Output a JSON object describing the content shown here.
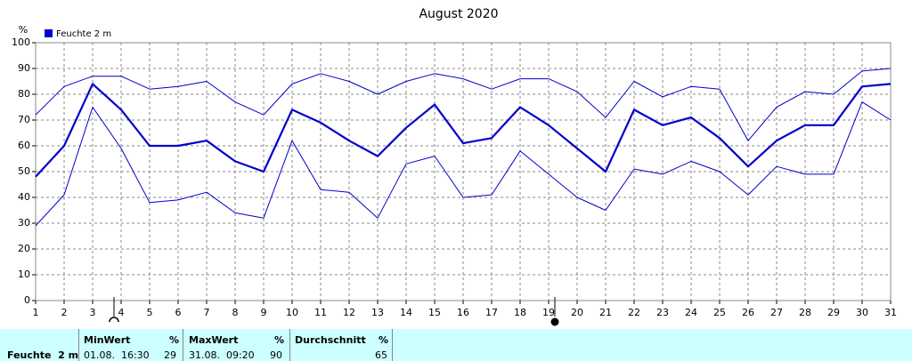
{
  "chart_data": {
    "type": "line",
    "title": "August 2020",
    "y_label": "%",
    "x": [
      1,
      2,
      3,
      4,
      5,
      6,
      7,
      8,
      9,
      10,
      11,
      12,
      13,
      14,
      15,
      16,
      17,
      18,
      19,
      20,
      21,
      22,
      23,
      24,
      25,
      26,
      27,
      28,
      29,
      30,
      31
    ],
    "xlim": [
      1,
      31
    ],
    "xticks": [
      1,
      2,
      3,
      4,
      5,
      6,
      7,
      8,
      9,
      10,
      11,
      12,
      13,
      14,
      15,
      16,
      17,
      18,
      19,
      20,
      21,
      22,
      23,
      24,
      25,
      26,
      27,
      28,
      29,
      30,
      31
    ],
    "ylim": [
      0,
      100
    ],
    "yticks": [
      0,
      10,
      20,
      30,
      40,
      50,
      60,
      70,
      80,
      90,
      100
    ],
    "grid": true,
    "legend": "top-left",
    "series": [
      {
        "name": "Feuchte  2 m",
        "color": "#0000cc",
        "width": 2.2,
        "values": [
          48,
          60,
          84,
          74,
          60,
          60,
          62,
          54,
          50,
          74,
          69,
          62,
          56,
          67,
          76,
          61,
          63,
          75,
          68,
          59,
          50,
          74,
          68,
          71,
          63,
          52,
          62,
          68,
          68,
          83,
          84
        ]
      },
      {
        "color": "#0000cc",
        "width": 1,
        "values": [
          72,
          83,
          87,
          87,
          82,
          83,
          85,
          77,
          72,
          84,
          88,
          85,
          80,
          85,
          88,
          86,
          82,
          86,
          86,
          81,
          71,
          85,
          79,
          83,
          82,
          62,
          75,
          81,
          80,
          89,
          90
        ]
      },
      {
        "color": "#0000cc",
        "width": 1,
        "values": [
          29,
          41,
          75,
          59,
          38,
          39,
          42,
          34,
          32,
          62,
          43,
          42,
          32,
          53,
          56,
          40,
          41,
          58,
          49,
          40,
          35,
          51,
          49,
          54,
          50,
          41,
          52,
          49,
          49,
          77,
          70
        ]
      }
    ]
  },
  "table": {
    "label": "Feuchte  2 m",
    "min": {
      "header": "MinWert",
      "unit": "%",
      "time": "01.08.  16:30",
      "value": "29"
    },
    "max": {
      "header": "MaxWert",
      "unit": "%",
      "time": "31.08.  09:20",
      "value": "90"
    },
    "avg": {
      "header": "Durchschnitt",
      "unit": "%",
      "value": "65"
    }
  }
}
